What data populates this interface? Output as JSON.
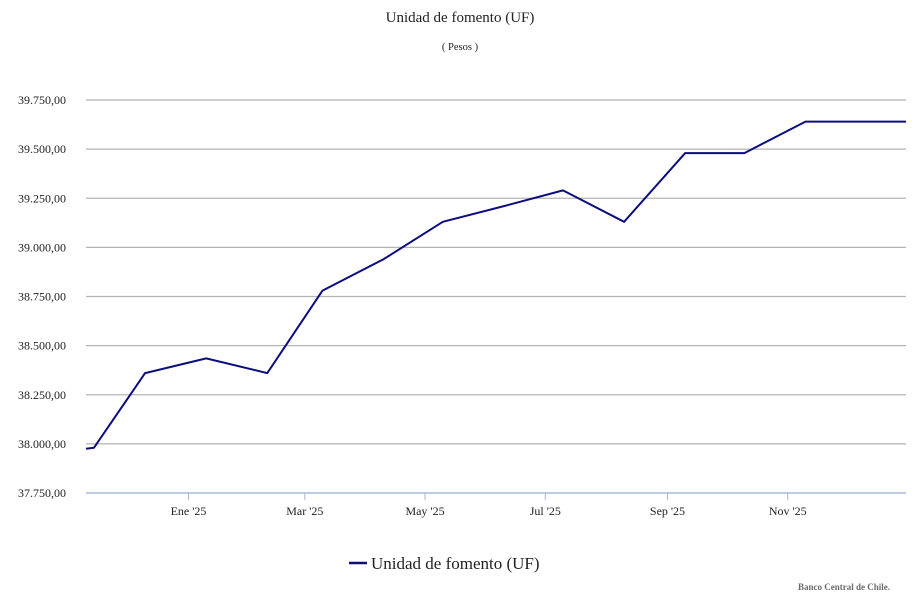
{
  "chart_data": {
    "type": "line",
    "title": "Unidad de fomento (UF)",
    "subtitle": "( Pesos )",
    "ylim": [
      37750,
      39750
    ],
    "yticks": [
      37750,
      38000,
      38250,
      38500,
      38750,
      39000,
      39250,
      39500,
      39750
    ],
    "ytick_labels": [
      "37.750,00",
      "38.000,00",
      "38.250,00",
      "38.500,00",
      "38.750,00",
      "39.000,00",
      "39.250,00",
      "39.500,00",
      "39.750,00"
    ],
    "xlim": [
      "2024-11-10",
      "2025-12-31"
    ],
    "xticks": [
      "2025-01-01",
      "2025-03-01",
      "2025-05-01",
      "2025-07-01",
      "2025-09-01",
      "2025-11-01"
    ],
    "xtick_labels": [
      "Ene '25",
      "Mar '25",
      "May '25",
      "Jul '25",
      "Sep '25",
      "Nov '25"
    ],
    "grid": true,
    "legend": "bottom-center",
    "series": [
      {
        "name": "Unidad de fomento (UF)",
        "color": "#0d0d7e",
        "points": [
          {
            "x": "2024-11-10",
            "y": 37975
          },
          {
            "x": "2024-11-14",
            "y": 37980
          },
          {
            "x": "2024-12-10",
            "y": 38360
          },
          {
            "x": "2025-01-10",
            "y": 38435
          },
          {
            "x": "2025-02-10",
            "y": 38360
          },
          {
            "x": "2025-03-10",
            "y": 38780
          },
          {
            "x": "2025-04-10",
            "y": 38940
          },
          {
            "x": "2025-05-10",
            "y": 39130
          },
          {
            "x": "2025-06-10",
            "y": 39210
          },
          {
            "x": "2025-07-10",
            "y": 39290
          },
          {
            "x": "2025-08-10",
            "y": 39130
          },
          {
            "x": "2025-09-10",
            "y": 39480
          },
          {
            "x": "2025-10-10",
            "y": 39480
          },
          {
            "x": "2025-11-10",
            "y": 39640
          },
          {
            "x": "2025-12-31",
            "y": 39640
          }
        ]
      }
    ]
  },
  "credit": "Banco Central de Chile."
}
